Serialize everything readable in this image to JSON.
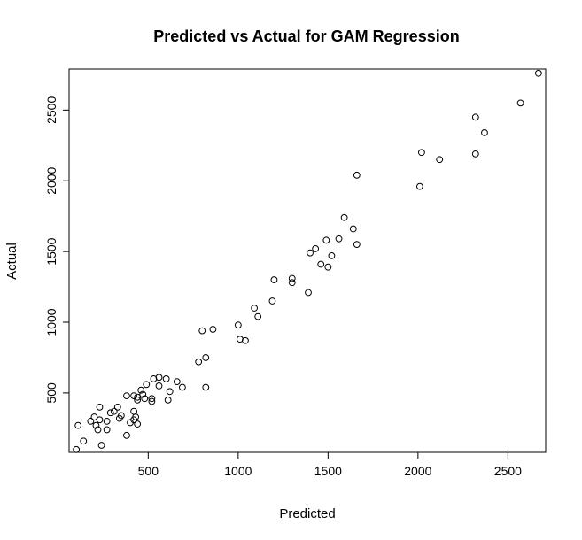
{
  "chart_data": {
    "type": "scatter",
    "title": "Predicted vs Actual for GAM Regression",
    "xlabel": "Predicted",
    "ylabel": "Actual",
    "xlim": [
      60,
      2710
    ],
    "ylim": [
      80,
      2790
    ],
    "x_ticks": [
      500,
      1000,
      1500,
      2000,
      2500
    ],
    "x_tick_labels": [
      "500",
      "1000",
      "1500",
      "2000",
      "2500"
    ],
    "y_ticks": [
      500,
      1000,
      1500,
      2000,
      2500
    ],
    "y_tick_labels": [
      "500",
      "1000",
      "1500",
      "2000",
      "2500"
    ],
    "grid": false,
    "marker": "open-circle",
    "points": [
      [
        2670,
        2760
      ],
      [
        2570,
        2550
      ],
      [
        2320,
        2450
      ],
      [
        2370,
        2340
      ],
      [
        2320,
        2190
      ],
      [
        2020,
        2200
      ],
      [
        2120,
        2150
      ],
      [
        2010,
        1960
      ],
      [
        1660,
        2040
      ],
      [
        1590,
        1740
      ],
      [
        1640,
        1660
      ],
      [
        1560,
        1590
      ],
      [
        1490,
        1580
      ],
      [
        1660,
        1550
      ],
      [
        1430,
        1520
      ],
      [
        1400,
        1490
      ],
      [
        1520,
        1470
      ],
      [
        1460,
        1410
      ],
      [
        1500,
        1390
      ],
      [
        1200,
        1300
      ],
      [
        1300,
        1310
      ],
      [
        1300,
        1280
      ],
      [
        1390,
        1210
      ],
      [
        1190,
        1150
      ],
      [
        1090,
        1100
      ],
      [
        1110,
        1040
      ],
      [
        1000,
        980
      ],
      [
        860,
        950
      ],
      [
        800,
        940
      ],
      [
        1010,
        880
      ],
      [
        1040,
        870
      ],
      [
        820,
        750
      ],
      [
        780,
        720
      ],
      [
        560,
        610
      ],
      [
        530,
        600
      ],
      [
        600,
        600
      ],
      [
        490,
        560
      ],
      [
        560,
        550
      ],
      [
        660,
        580
      ],
      [
        690,
        540
      ],
      [
        820,
        540
      ],
      [
        460,
        520
      ],
      [
        620,
        510
      ],
      [
        470,
        490
      ],
      [
        380,
        480
      ],
      [
        420,
        480
      ],
      [
        440,
        470
      ],
      [
        440,
        450
      ],
      [
        480,
        460
      ],
      [
        520,
        460
      ],
      [
        520,
        440
      ],
      [
        610,
        450
      ],
      [
        230,
        400
      ],
      [
        290,
        360
      ],
      [
        310,
        370
      ],
      [
        330,
        400
      ],
      [
        350,
        340
      ],
      [
        420,
        370
      ],
      [
        430,
        330
      ],
      [
        420,
        310
      ],
      [
        340,
        320
      ],
      [
        400,
        290
      ],
      [
        440,
        280
      ],
      [
        200,
        330
      ],
      [
        230,
        310
      ],
      [
        180,
        300
      ],
      [
        210,
        270
      ],
      [
        110,
        270
      ],
      [
        270,
        300
      ],
      [
        270,
        240
      ],
      [
        220,
        240
      ],
      [
        380,
        200
      ],
      [
        140,
        160
      ],
      [
        240,
        130
      ],
      [
        100,
        100
      ]
    ]
  }
}
